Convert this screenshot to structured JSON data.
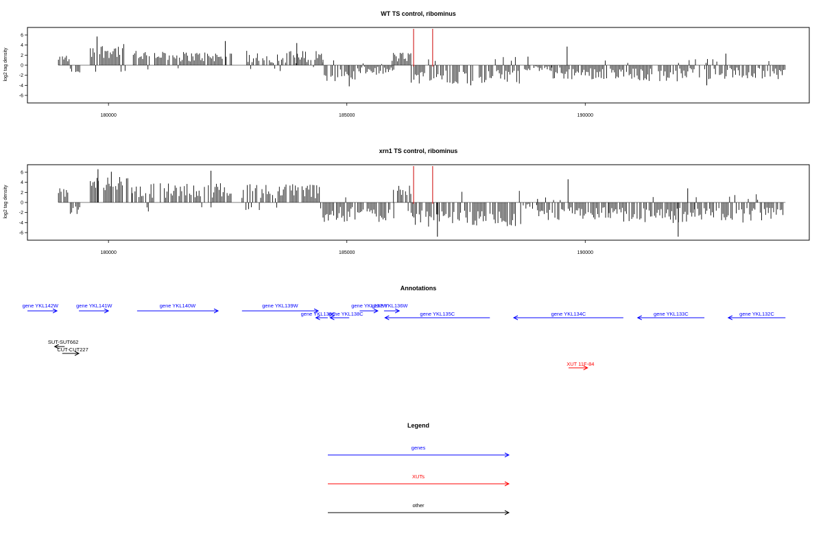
{
  "colors": {
    "genes": "#0000ff",
    "xuts": "#ff0000",
    "other": "#000000",
    "bars": "#000000",
    "markers": "#cc0000"
  },
  "chart_data": [
    {
      "type": "bar",
      "title": "WT TS control, ribominus",
      "xlabel": "",
      "ylabel": "log2 tag density",
      "xlim": [
        178300,
        194700
      ],
      "ylim": [
        -7.5,
        7.5
      ],
      "x_ticks": [
        180000,
        185000,
        190000
      ],
      "x_tick_labels": [
        "180000",
        "185000",
        "190000"
      ],
      "y_ticks": [
        -6,
        -4,
        -2,
        0,
        2,
        4,
        6
      ],
      "y_tick_labels": [
        "-6",
        "-4",
        "-2",
        "0",
        "2",
        "4",
        "6"
      ],
      "marker_lines": [
        186400,
        186800
      ],
      "profile": [
        {
          "from": 178950,
          "to": 179200,
          "mean": 1.4,
          "amp": 0.8
        },
        {
          "from": 179200,
          "to": 179400,
          "mean": -1.2,
          "amp": 0.6
        },
        {
          "from": 179620,
          "to": 180350,
          "mean": 2.8,
          "amp": 1.4
        },
        {
          "from": 180520,
          "to": 181300,
          "mean": 2.0,
          "amp": 1.0
        },
        {
          "from": 181350,
          "to": 182600,
          "mean": 1.7,
          "amp": 1.0
        },
        {
          "from": 182900,
          "to": 184500,
          "mean": 1.6,
          "amp": 1.3
        },
        {
          "from": 184500,
          "to": 185200,
          "mean": -2.0,
          "amp": 1.2
        },
        {
          "from": 185200,
          "to": 186000,
          "mean": -1.1,
          "amp": 0.8
        },
        {
          "from": 185950,
          "to": 186350,
          "mean": 1.6,
          "amp": 1.0
        },
        {
          "from": 186350,
          "to": 188700,
          "mean": -2.3,
          "amp": 1.4
        },
        {
          "from": 188700,
          "to": 189300,
          "mean": -0.7,
          "amp": 0.5
        },
        {
          "from": 189300,
          "to": 190500,
          "mean": -1.6,
          "amp": 1.2
        },
        {
          "from": 190500,
          "to": 192200,
          "mean": -1.9,
          "amp": 1.3
        },
        {
          "from": 192200,
          "to": 194200,
          "mean": -1.6,
          "amp": 1.2
        }
      ],
      "peaks": [
        {
          "x": 179760,
          "y": 5.7
        },
        {
          "x": 182450,
          "y": 4.8
        },
        {
          "x": 183950,
          "y": 4.4
        },
        {
          "x": 189620,
          "y": 3.7
        },
        {
          "x": 188800,
          "y": 1.7
        },
        {
          "x": 192950,
          "y": 2.3
        },
        {
          "x": 187600,
          "y": -4.0
        },
        {
          "x": 192550,
          "y": -4.0
        },
        {
          "x": 185050,
          "y": -4.2
        }
      ]
    },
    {
      "type": "bar",
      "title": "xrn1 TS control, ribominus",
      "xlabel": "",
      "ylabel": "log2 tag density",
      "xlim": [
        178300,
        194700
      ],
      "ylim": [
        -7.5,
        7.5
      ],
      "x_ticks": [
        180000,
        185000,
        190000
      ],
      "x_tick_labels": [
        "180000",
        "185000",
        "190000"
      ],
      "y_ticks": [
        -6,
        -4,
        -2,
        0,
        2,
        4,
        6
      ],
      "y_tick_labels": [
        "-6",
        "-4",
        "-2",
        "0",
        "2",
        "4",
        "6"
      ],
      "marker_lines": [
        186400,
        186800
      ],
      "profile": [
        {
          "from": 178950,
          "to": 179200,
          "mean": 2.0,
          "amp": 1.0
        },
        {
          "from": 179200,
          "to": 179400,
          "mean": -1.6,
          "amp": 0.8
        },
        {
          "from": 179620,
          "to": 180500,
          "mean": 3.6,
          "amp": 1.6
        },
        {
          "from": 180500,
          "to": 182600,
          "mean": 2.4,
          "amp": 1.5
        },
        {
          "from": 182800,
          "to": 184500,
          "mean": 2.3,
          "amp": 1.5
        },
        {
          "from": 184500,
          "to": 186000,
          "mean": -2.4,
          "amp": 1.5
        },
        {
          "from": 185950,
          "to": 186350,
          "mean": 2.6,
          "amp": 1.3
        },
        {
          "from": 186350,
          "to": 188700,
          "mean": -3.2,
          "amp": 1.6
        },
        {
          "from": 188700,
          "to": 189000,
          "mean": -0.8,
          "amp": 0.6
        },
        {
          "from": 189000,
          "to": 190500,
          "mean": -2.3,
          "amp": 1.4
        },
        {
          "from": 190500,
          "to": 192300,
          "mean": -2.6,
          "amp": 1.6
        },
        {
          "from": 192300,
          "to": 194200,
          "mean": -2.5,
          "amp": 1.5
        }
      ],
      "peaks": [
        {
          "x": 179780,
          "y": 6.6
        },
        {
          "x": 180060,
          "y": 6.1
        },
        {
          "x": 182150,
          "y": 6.3
        },
        {
          "x": 189640,
          "y": 4.6
        },
        {
          "x": 192150,
          "y": 2.8
        },
        {
          "x": 186900,
          "y": -6.8
        },
        {
          "x": 191950,
          "y": -6.8
        },
        {
          "x": 189000,
          "y": 0.7
        }
      ]
    }
  ],
  "annotations": {
    "title": "Annotations",
    "features": [
      {
        "label": "gene YKL142W",
        "category": "genes",
        "strand": "+",
        "start": 178300,
        "end": 178920,
        "label_x": 178570,
        "row": 0
      },
      {
        "label": "gene YKL141W",
        "category": "genes",
        "strand": "+",
        "start": 179380,
        "end": 180000,
        "label_x": 179700,
        "row": 0
      },
      {
        "label": "gene YKL140W",
        "category": "genes",
        "strand": "+",
        "start": 180600,
        "end": 182300,
        "label_x": 181450,
        "row": 0
      },
      {
        "label": "gene YKL139W",
        "category": "genes",
        "strand": "+",
        "start": 182800,
        "end": 184400,
        "label_x": 183600,
        "row": 0
      },
      {
        "label": "gene YKL138C",
        "category": "genes",
        "strand": "-",
        "start": 184350,
        "end": 184600,
        "label_x": 184400,
        "row": 1
      },
      {
        "label": "gene YKL138C",
        "category": "genes",
        "strand": "-",
        "start": 184650,
        "end": 185050,
        "label_x": 184980,
        "row": 1
      },
      {
        "label": "gene YKL137W",
        "category": "genes",
        "strand": "+",
        "start": 185270,
        "end": 185650,
        "label_x": 185470,
        "row": 0
      },
      {
        "label": "gene YKL136W",
        "category": "genes",
        "strand": "+",
        "start": 185780,
        "end": 186100,
        "label_x": 185900,
        "row": 0
      },
      {
        "label": "gene YKL135C",
        "category": "genes",
        "strand": "-",
        "start": 185800,
        "end": 188000,
        "label_x": 186900,
        "row": 1
      },
      {
        "label": "gene YKL134C",
        "category": "genes",
        "strand": "-",
        "start": 188500,
        "end": 190800,
        "label_x": 189650,
        "row": 1
      },
      {
        "label": "gene YKL133C",
        "category": "genes",
        "strand": "-",
        "start": 191100,
        "end": 192500,
        "label_x": 191800,
        "row": 1
      },
      {
        "label": "gene YKL132C",
        "category": "genes",
        "strand": "-",
        "start": 193000,
        "end": 194200,
        "label_x": 193600,
        "row": 1
      },
      {
        "label": "SUT-SUT662",
        "category": "other",
        "strand": "-",
        "start": 178870,
        "end": 179080,
        "label_x": 179050,
        "row": 3
      },
      {
        "label": "CUT-CUT227",
        "category": "other",
        "strand": "+",
        "start": 179030,
        "end": 179380,
        "label_x": 179250,
        "row": 4
      },
      {
        "label": "XUT 11F-84",
        "category": "xuts",
        "strand": "+",
        "start": 189650,
        "end": 190050,
        "label_x": 189900,
        "row": 5
      }
    ]
  },
  "legend": {
    "title": "Legend",
    "entries": [
      {
        "label": "genes",
        "category": "genes"
      },
      {
        "label": "XUTs",
        "category": "xuts"
      },
      {
        "label": "other",
        "category": "other"
      }
    ]
  }
}
